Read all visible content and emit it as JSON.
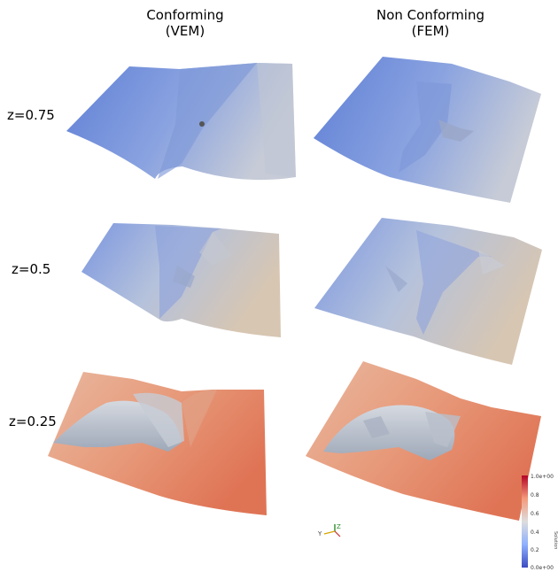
{
  "columns": [
    {
      "title": "Conforming",
      "subtitle": "(VEM)"
    },
    {
      "title": "Non Conforming",
      "subtitle": "(FEM)"
    }
  ],
  "rows": [
    {
      "label": "z=0.75"
    },
    {
      "label": "z=0.5"
    },
    {
      "label": "z=0.25"
    }
  ],
  "colorbar": {
    "title": "Solution",
    "ticks": [
      "1.0e+00",
      "0.8",
      "0.6",
      "0.4",
      "0.2",
      "0.0e+00"
    ],
    "range": [
      0,
      1
    ],
    "colors": [
      "#b40426",
      "#f49a7b",
      "#dddddd",
      "#8db0fe",
      "#3b4cc0"
    ]
  },
  "axes_glyph": {
    "y": "Y",
    "z": "Z"
  },
  "surface_colors": {
    "z075": [
      "#5f7fd6",
      "#c6cbd7"
    ],
    "z05": [
      "#7b96e0",
      "#d7c6b2"
    ],
    "z025": [
      "#e0a58a",
      "#e07a5a",
      "#c9cdd3"
    ]
  }
}
